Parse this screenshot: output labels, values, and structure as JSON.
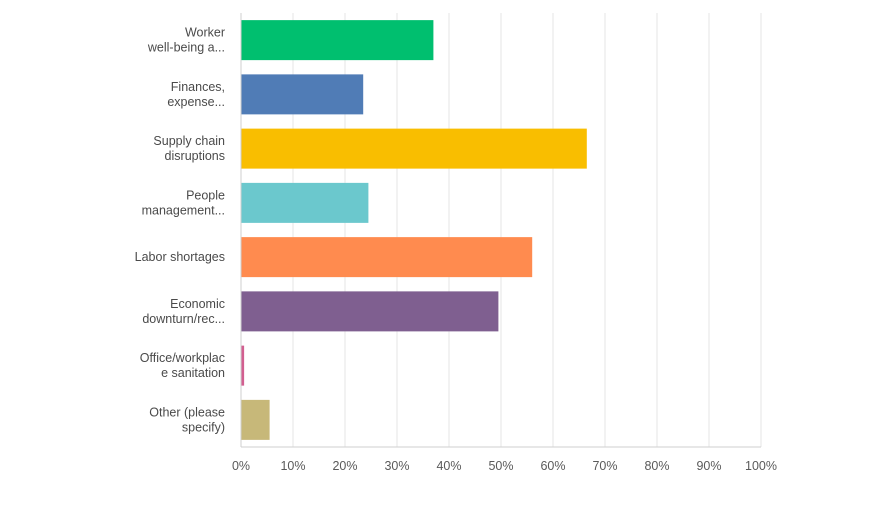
{
  "chart_data": {
    "type": "bar",
    "orientation": "horizontal",
    "categories": [
      [
        "Worker",
        "well-being a..."
      ],
      [
        "Finances,",
        "expense..."
      ],
      [
        "Supply chain",
        "disruptions"
      ],
      [
        "People",
        "management..."
      ],
      [
        "Labor shortages"
      ],
      [
        "Economic",
        "downturn/rec..."
      ],
      [
        "Office/workplac",
        "e sanitation"
      ],
      [
        "Other (please",
        "specify)"
      ]
    ],
    "values": [
      37,
      23.5,
      66.5,
      24.5,
      56,
      49.5,
      0.6,
      5.5
    ],
    "colors": [
      "#00bf6f",
      "#507cb6",
      "#f9be00",
      "#6bc8cd",
      "#ff8b4f",
      "#7f5f90",
      "#d25f90",
      "#c7b879"
    ],
    "x_ticks": [
      "0%",
      "10%",
      "20%",
      "30%",
      "40%",
      "50%",
      "60%",
      "70%",
      "80%",
      "90%",
      "100%"
    ],
    "xlim": [
      0,
      100
    ],
    "grid": true
  }
}
